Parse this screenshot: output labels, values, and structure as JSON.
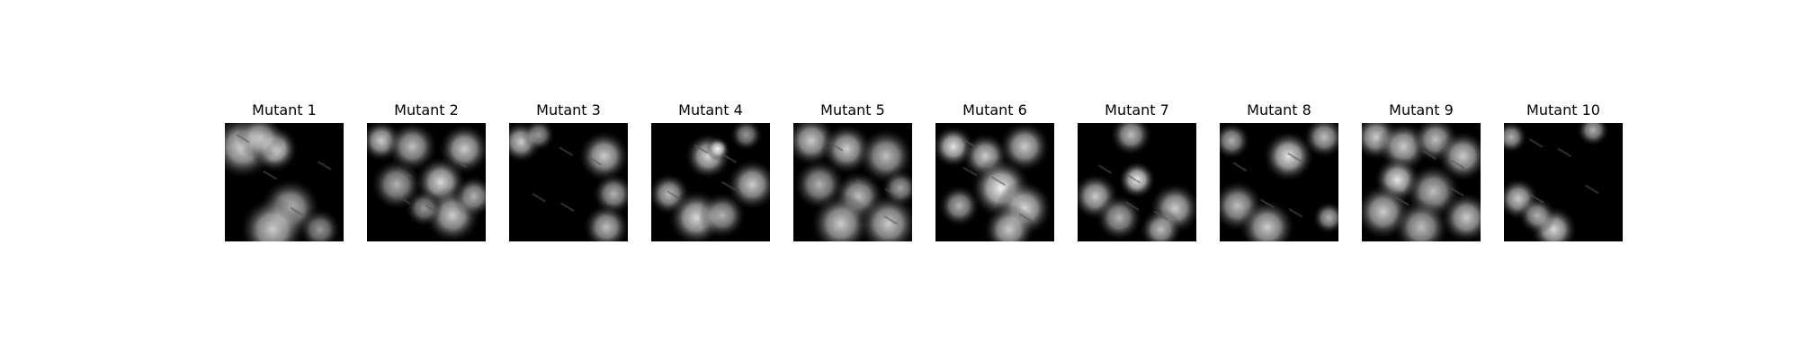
{
  "figure": {
    "panels": [
      {
        "title": "Mutant 1",
        "image_alt": "Mutant 1 saliency mask"
      },
      {
        "title": "Mutant 2",
        "image_alt": "Mutant 2 saliency mask"
      },
      {
        "title": "Mutant 3",
        "image_alt": "Mutant 3 saliency mask"
      },
      {
        "title": "Mutant 4",
        "image_alt": "Mutant 4 saliency mask"
      },
      {
        "title": "Mutant 5",
        "image_alt": "Mutant 5 saliency mask"
      },
      {
        "title": "Mutant 6",
        "image_alt": "Mutant 6 saliency mask"
      },
      {
        "title": "Mutant 7",
        "image_alt": "Mutant 7 saliency mask"
      },
      {
        "title": "Mutant 8",
        "image_alt": "Mutant 8 saliency mask"
      },
      {
        "title": "Mutant 9",
        "image_alt": "Mutant 9 saliency mask"
      },
      {
        "title": "Mutant 10",
        "image_alt": "Mutant 10 saliency mask"
      }
    ]
  }
}
